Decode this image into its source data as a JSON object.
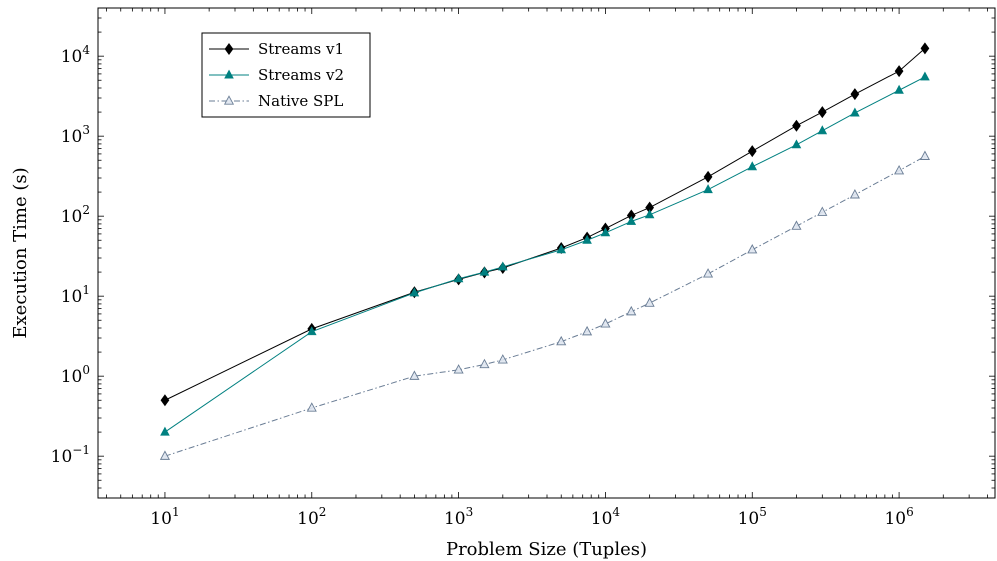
{
  "chart_data": {
    "type": "line",
    "title": "",
    "xlabel": "Problem Size (Tuples)",
    "ylabel": "Execution Time (s)",
    "xscale": "log",
    "yscale": "log",
    "xlim": [
      3.5,
      4500000
    ],
    "ylim": [
      0.03,
      40000
    ],
    "x_ticks": [
      {
        "value": 10,
        "base": "10",
        "exp": "1"
      },
      {
        "value": 100,
        "base": "10",
        "exp": "2"
      },
      {
        "value": 1000,
        "base": "10",
        "exp": "3"
      },
      {
        "value": 10000,
        "base": "10",
        "exp": "4"
      },
      {
        "value": 100000,
        "base": "10",
        "exp": "5"
      },
      {
        "value": 1000000,
        "base": "10",
        "exp": "6"
      }
    ],
    "y_ticks": [
      {
        "value": 0.1,
        "base": "10",
        "exp": "−1"
      },
      {
        "value": 1,
        "base": "10",
        "exp": "0"
      },
      {
        "value": 10,
        "base": "10",
        "exp": "1"
      },
      {
        "value": 100,
        "base": "10",
        "exp": "2"
      },
      {
        "value": 1000,
        "base": "10",
        "exp": "3"
      },
      {
        "value": 10000,
        "base": "10",
        "exp": "4"
      }
    ],
    "grid": false,
    "legend_position": "top-left",
    "series": [
      {
        "name": "Streams v1",
        "color": "#000000",
        "marker": "diamond-filled",
        "line_style": "solid",
        "points": [
          [
            10,
            0.5
          ],
          [
            100,
            3.9
          ],
          [
            500,
            11.2
          ],
          [
            1000,
            16.2
          ],
          [
            1500,
            19.8
          ],
          [
            2000,
            22.5
          ],
          [
            5000,
            40
          ],
          [
            7500,
            54
          ],
          [
            10000,
            70
          ],
          [
            15000,
            102
          ],
          [
            20000,
            128
          ],
          [
            50000,
            310
          ],
          [
            100000,
            650
          ],
          [
            200000,
            1350
          ],
          [
            300000,
            2000
          ],
          [
            500000,
            3350
          ],
          [
            1000000,
            6500
          ],
          [
            1500000,
            12500
          ]
        ]
      },
      {
        "name": "Streams v2",
        "color": "#008080",
        "marker": "triangle-filled",
        "line_style": "solid",
        "points": [
          [
            10,
            0.2
          ],
          [
            100,
            3.6
          ],
          [
            500,
            11.0
          ],
          [
            1000,
            16.5
          ],
          [
            1500,
            20.0
          ],
          [
            2000,
            23.2
          ],
          [
            5000,
            38
          ],
          [
            7500,
            50
          ],
          [
            10000,
            62
          ],
          [
            15000,
            86
          ],
          [
            20000,
            104
          ],
          [
            50000,
            215
          ],
          [
            100000,
            415
          ],
          [
            200000,
            780
          ],
          [
            300000,
            1170
          ],
          [
            500000,
            1950
          ],
          [
            1000000,
            3750
          ],
          [
            1500000,
            5500
          ]
        ]
      },
      {
        "name": "Native SPL",
        "color": "#6a7d95",
        "marker": "triangle-open",
        "line_style": "dash-dot",
        "points": [
          [
            10,
            0.1
          ],
          [
            100,
            0.4
          ],
          [
            500,
            1.0
          ],
          [
            1000,
            1.2
          ],
          [
            1500,
            1.4
          ],
          [
            2000,
            1.6
          ],
          [
            5000,
            2.7
          ],
          [
            7500,
            3.6
          ],
          [
            10000,
            4.5
          ],
          [
            15000,
            6.4
          ],
          [
            20000,
            8.2
          ],
          [
            50000,
            19
          ],
          [
            100000,
            38
          ],
          [
            200000,
            75
          ],
          [
            300000,
            112
          ],
          [
            500000,
            185
          ],
          [
            1000000,
            370
          ],
          [
            1500000,
            560
          ]
        ]
      }
    ]
  }
}
